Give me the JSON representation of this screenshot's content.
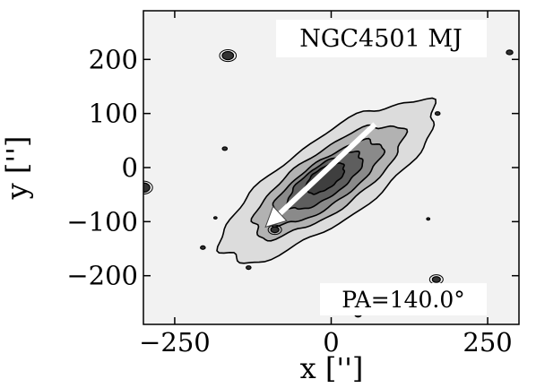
{
  "chart_data": {
    "type": "contour",
    "title": "NGC4501 MJ",
    "xlabel": "x ['']",
    "ylabel": "y ['']",
    "xlim": [
      -300,
      300
    ],
    "ylim": [
      -290,
      290
    ],
    "x_ticks": [
      -250,
      0,
      250
    ],
    "x_tick_labels": [
      "−250",
      "0",
      "250"
    ],
    "y_ticks": [
      200,
      100,
      0,
      -100,
      -200
    ],
    "y_tick_labels": [
      "200",
      "100",
      "0",
      "−100",
      "−200"
    ],
    "annotation": "PA=140.0°",
    "position_angle_deg": 140.0,
    "arrow": {
      "from": [
        70,
        80
      ],
      "to": [
        -105,
        -110
      ]
    },
    "grid": false,
    "contour_levels": [
      {
        "fill": "#dcdcdc",
        "cx": -5,
        "cy": -25,
        "semi_major": 215,
        "semi_minor": 72,
        "angle_deg": 40
      },
      {
        "fill": "#b2b2b2",
        "cx": -5,
        "cy": -25,
        "semi_major": 150,
        "semi_minor": 52,
        "angle_deg": 40
      },
      {
        "fill": "#8a8a8a",
        "cx": -8,
        "cy": -28,
        "semi_major": 112,
        "semi_minor": 38,
        "angle_deg": 40
      },
      {
        "fill": "#5e5e5e",
        "cx": -10,
        "cy": -25,
        "semi_major": 75,
        "semi_minor": 28,
        "angle_deg": 40
      },
      {
        "fill": "#3f3f3f",
        "cx": -10,
        "cy": -20,
        "semi_major": 38,
        "semi_minor": 18,
        "angle_deg": 40
      }
    ],
    "point_sources": [
      {
        "x": -165,
        "y": 207,
        "r": 7
      },
      {
        "x": -300,
        "y": -37,
        "r": 8
      },
      {
        "x": -90,
        "y": -115,
        "r": 5
      },
      {
        "x": 40,
        "y": 210,
        "r": 4
      },
      {
        "x": 285,
        "y": 213,
        "r": 4
      },
      {
        "x": 168,
        "y": -207,
        "r": 5
      },
      {
        "x": 170,
        "y": 100,
        "r": 3
      },
      {
        "x": -170,
        "y": 35,
        "r": 3
      },
      {
        "x": -205,
        "y": -148,
        "r": 3
      },
      {
        "x": -132,
        "y": -185,
        "r": 3
      },
      {
        "x": 43,
        "y": -272,
        "r": 4
      },
      {
        "x": 155,
        "y": -95,
        "r": 2
      },
      {
        "x": -185,
        "y": -93,
        "r": 2
      }
    ]
  }
}
